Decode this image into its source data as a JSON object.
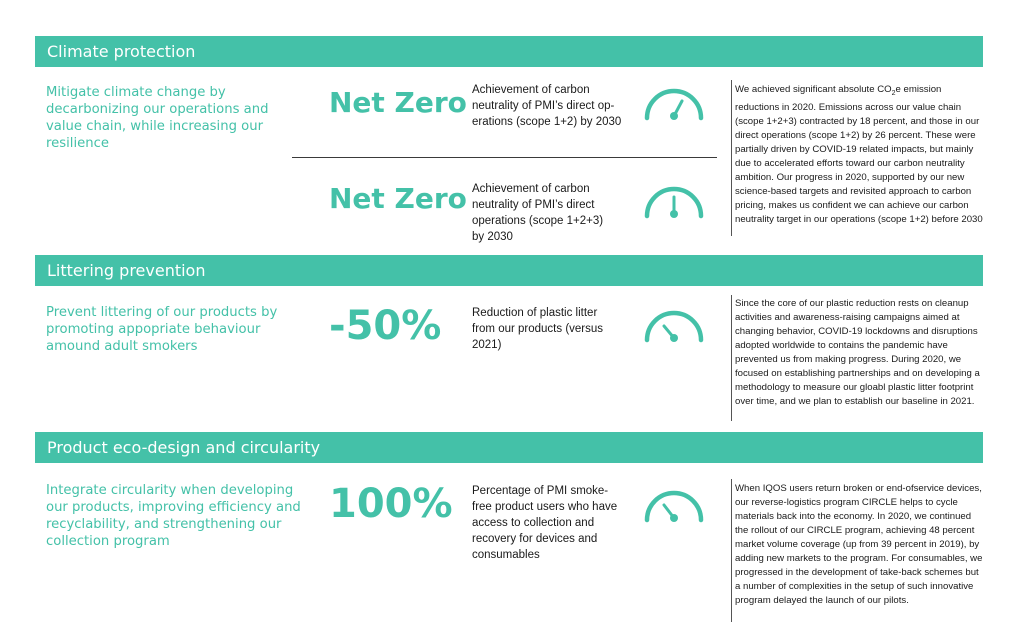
{
  "sections": [
    {
      "title": "Climate protection",
      "goal": "Mitigate climate change by decarbonizing our operations and value chain, while increasing our resilience",
      "targets": [
        {
          "value": "Net Zero",
          "description": "Achievement of carbon neutrality of PMI’s direct op­erations (scope 1+2) by 2030",
          "gauge_icon": "gauge-icon"
        },
        {
          "value": "Net Zero",
          "description": "Achievement of carbon neutrality of PMI’s direct operations (scope 1+2+3) by 2030",
          "gauge_icon": "gauge-icon"
        }
      ],
      "note_pre": "We achieved significant absolute CO",
      "note_sub": "2",
      "note_post": "e emission reductions in 2020. Emissions across our value chain (scope 1+2+3) contracted by 18 percent, and those in our direct operations (scope 1+2) by 26 percent. These were partially driven by COVID-19 related impacts, but mainly due to accelerated efforts toward our carbon neutrality ambition. Our progress in 2020, supported by our new science-based targets and revisited approach to carbon pricing, makes us confident we can achieve our carbon neutrality target in our operations (scope 1+2) before 2030"
    },
    {
      "title": "Littering prevention",
      "goal": "Prevent littering of our products by promoting appopriate behaviour amound adult smokers",
      "targets": [
        {
          "value": "-50%",
          "description": "Reduction of plastic litter from our products (versus 2021)",
          "gauge_icon": "gauge-icon"
        }
      ],
      "note": "Since the core of our plastic reduction rests on cleanup activities and awareness-raising campaigns aimed at changing behavior, COVID-19 lockdowns and disruptions adopted worldwide to contains the pandemic have prevented us from making progress. During 2020, we focused on establishing partnerships and on developing a methodology to measure our gloabl plastic litter footprint over time, and we plan to establish our baseline in 2021."
    },
    {
      "title": "Product eco-design and circularity",
      "goal": "Integrate circularity when developing our products, improving efficiency and recyclability, and strengthening our collection program",
      "targets": [
        {
          "value": "100%",
          "description": "Percentage of PMI smoke-free product users who have access to collection and recovery for devices and consumables",
          "gauge_icon": "gauge-icon"
        }
      ],
      "note": "When IQOS users return broken or end-ofservice devices, our reverse-logistics program CIRCLE helps to cycle materials back into the economy. In 2020, we continued the rollout of our CIRCLE program, achieving 48 percent market volume coverage (up from 39 percent in 2019), by adding new markets to the program. For consumables, we progressed in the development of take-back schemes but a number of complexities in the setup of such innovative program delayed the launch of our pilots."
    }
  ],
  "colors": {
    "accent": "#44c1a8",
    "text": "#1a1a1a",
    "band_text": "#ffffff"
  }
}
